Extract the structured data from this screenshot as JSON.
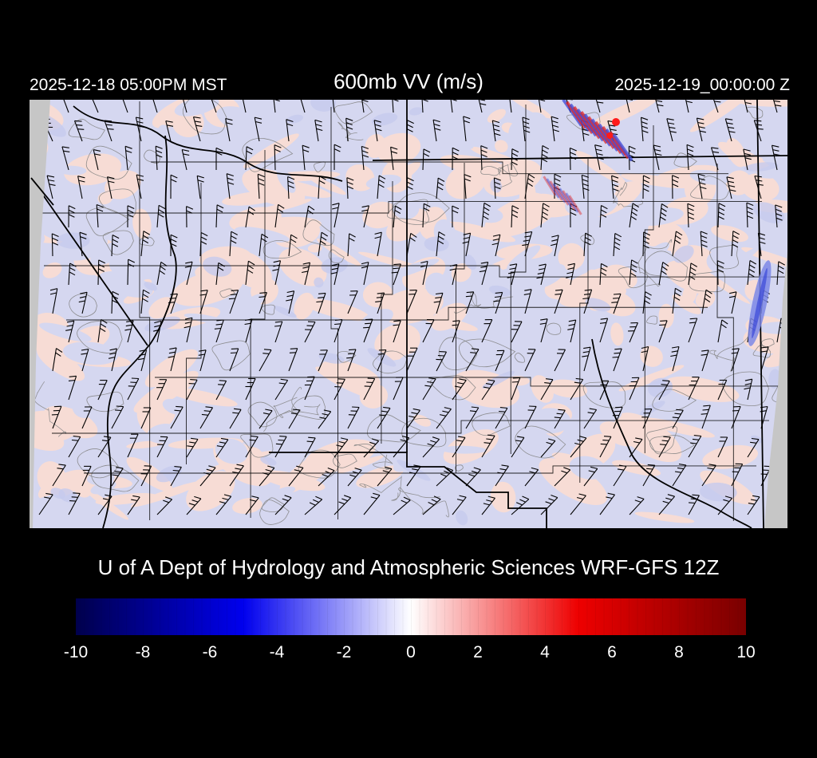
{
  "header": {
    "valid_local": "2025-12-18 05:00PM MST",
    "title": "600mb VV (m/s)",
    "valid_utc": "2025-12-19_00:00:00 Z"
  },
  "caption": "U of A Dept of Hydrology and Atmospheric Sciences WRF-GFS 12Z",
  "colorbar": {
    "min": -10,
    "max": 10,
    "ticks": [
      "-10",
      "-8",
      "-6",
      "-4",
      "-2",
      "0",
      "2",
      "4",
      "6",
      "8",
      "10"
    ],
    "gradient": {
      "neg_end": "#00004c",
      "neg": "#0000ee",
      "zero": "#ffffff",
      "pos": "#ee0000",
      "pos_end": "#790000"
    }
  },
  "map": {
    "colors": {
      "background": "#d5d7f0",
      "ascent_pink": "#f7dcd5",
      "descent_blue": "#c6cbee",
      "outside_domain": "#c6c6c6",
      "contour": "#858585",
      "boundary": "#000000",
      "wave_red": "#e02525",
      "wave_blue": "#3a48d8",
      "wave_bright_red": "#ff1a1a",
      "streak_blue": "#7d88e6"
    }
  },
  "page": {
    "background": "#000000",
    "text_color": "#ffffff"
  }
}
